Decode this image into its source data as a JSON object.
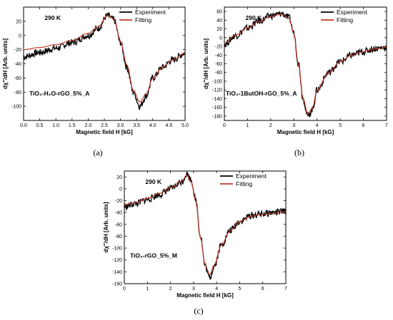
{
  "chart_data": [
    {
      "type": "line",
      "panel_caption": "(a)",
      "xlabel": "Magnetic field H [kG]",
      "ylabel": "dχ''/dH [Arb. units]",
      "xlim": [
        0.0,
        5.0
      ],
      "ylim": [
        -120,
        40
      ],
      "x_ticks": [
        "0.0",
        "0.5",
        "1.0",
        "1.5",
        "2.0",
        "2.5",
        "3.0",
        "3.5",
        "4.0",
        "4.5",
        "5.0"
      ],
      "y_ticks": [
        "20",
        "0",
        "-20",
        "-40",
        "-60",
        "-80",
        "-100"
      ],
      "annotation_temp": "290 K",
      "sample_label": "TiO₂-H₂O-rGO_5%_A",
      "legend": {
        "position": "top-right",
        "entries": [
          "Experiment",
          "Fitting"
        ]
      },
      "series": [
        {
          "name": "Experiment",
          "color": "#000000",
          "x": [
            0,
            0.5,
            1.0,
            1.5,
            2.0,
            2.3,
            2.6,
            2.8,
            3.0,
            3.2,
            3.4,
            3.6,
            3.8,
            4.0,
            4.3,
            4.6,
            5.0
          ],
          "y": [
            -30,
            -24,
            -18,
            -10,
            0,
            10,
            28,
            22,
            -10,
            -45,
            -80,
            -100,
            -85,
            -60,
            -45,
            -35,
            -25
          ]
        },
        {
          "name": "Fitting",
          "color": "#c0392b",
          "x": [
            0,
            0.5,
            1.0,
            1.5,
            2.0,
            2.3,
            2.6,
            2.8,
            3.0,
            3.2,
            3.4,
            3.6,
            3.8,
            4.0,
            4.3,
            4.6,
            5.0
          ],
          "y": [
            -20,
            -17,
            -13,
            -7,
            3,
            12,
            28,
            24,
            -8,
            -42,
            -78,
            -94,
            -82,
            -60,
            -45,
            -35,
            -25
          ]
        }
      ]
    },
    {
      "type": "line",
      "panel_caption": "(b)",
      "xlabel": "Magnetic field H [kG]",
      "ylabel": "dχ''/dH [Arb. units]",
      "xlim": [
        0,
        7
      ],
      "ylim": [
        -190,
        70
      ],
      "x_ticks": [
        "0",
        "1",
        "2",
        "3",
        "4",
        "5",
        "6",
        "7"
      ],
      "y_ticks": [
        "60",
        "40",
        "20",
        "0",
        "-20",
        "-40",
        "-60",
        "-80",
        "-100",
        "-120",
        "-140",
        "-160",
        "-180"
      ],
      "annotation_temp": "290 K",
      "sample_label": "TiO₂-1ButOH-rGO_5%_A",
      "legend": {
        "position": "top-right",
        "entries": [
          "Experiment",
          "Fitting"
        ]
      },
      "series": [
        {
          "name": "Experiment",
          "color": "#000000",
          "x": [
            0,
            0.5,
            1.0,
            1.5,
            2.0,
            2.5,
            2.8,
            3.0,
            3.2,
            3.4,
            3.6,
            3.8,
            4.0,
            4.5,
            5.0,
            5.5,
            6.0,
            6.5,
            7.0
          ],
          "y": [
            -15,
            5,
            22,
            38,
            50,
            55,
            45,
            10,
            -60,
            -140,
            -180,
            -165,
            -120,
            -80,
            -55,
            -40,
            -32,
            -25,
            -22
          ]
        },
        {
          "name": "Fitting",
          "color": "#c0392b",
          "x": [
            0,
            0.5,
            1.0,
            1.5,
            2.0,
            2.5,
            2.8,
            3.0,
            3.2,
            3.4,
            3.6,
            3.8,
            4.0,
            4.5,
            5.0,
            5.5,
            6.0,
            6.5,
            7.0
          ],
          "y": [
            -12,
            6,
            22,
            37,
            49,
            54,
            44,
            8,
            -62,
            -140,
            -175,
            -162,
            -120,
            -80,
            -55,
            -40,
            -32,
            -26,
            -22
          ]
        }
      ]
    },
    {
      "type": "line",
      "panel_caption": "(c)",
      "xlabel": "Magnetic field H [kG]",
      "ylabel": "dχ''/dH [Arb. units]",
      "xlim": [
        0,
        7
      ],
      "ylim": [
        -160,
        30
      ],
      "x_ticks": [
        "0",
        "1",
        "2",
        "3",
        "4",
        "5",
        "6",
        "7"
      ],
      "y_ticks": [
        "20",
        "0",
        "-20",
        "-40",
        "-60",
        "-80",
        "-100",
        "-120",
        "-140",
        "-160"
      ],
      "annotation_temp": "290 K",
      "sample_label": "TiO₂-rGO_5%_M",
      "legend": {
        "position": "top-right",
        "entries": [
          "Experiment",
          "Fitting"
        ]
      },
      "series": [
        {
          "name": "Experiment",
          "color": "#000000",
          "x": [
            0,
            0.5,
            1.0,
            1.5,
            2.0,
            2.5,
            2.7,
            2.9,
            3.1,
            3.3,
            3.5,
            3.7,
            3.9,
            4.2,
            4.6,
            5.0,
            5.5,
            6.0,
            6.5,
            7.0
          ],
          "y": [
            -30,
            -25,
            -18,
            -10,
            0,
            12,
            25,
            15,
            -20,
            -80,
            -130,
            -150,
            -130,
            -95,
            -70,
            -55,
            -45,
            -42,
            -40,
            -38
          ]
        },
        {
          "name": "Fitting",
          "color": "#c0392b",
          "x": [
            0,
            0.5,
            1.0,
            1.5,
            2.0,
            2.5,
            2.7,
            2.9,
            3.1,
            3.3,
            3.5,
            3.7,
            3.9,
            4.2,
            4.6,
            5.0,
            5.5,
            6.0,
            6.5,
            7.0
          ],
          "y": [
            -27,
            -23,
            -16,
            -8,
            2,
            13,
            23,
            12,
            -22,
            -82,
            -128,
            -145,
            -128,
            -95,
            -70,
            -55,
            -46,
            -43,
            -41,
            -39
          ]
        }
      ]
    }
  ]
}
